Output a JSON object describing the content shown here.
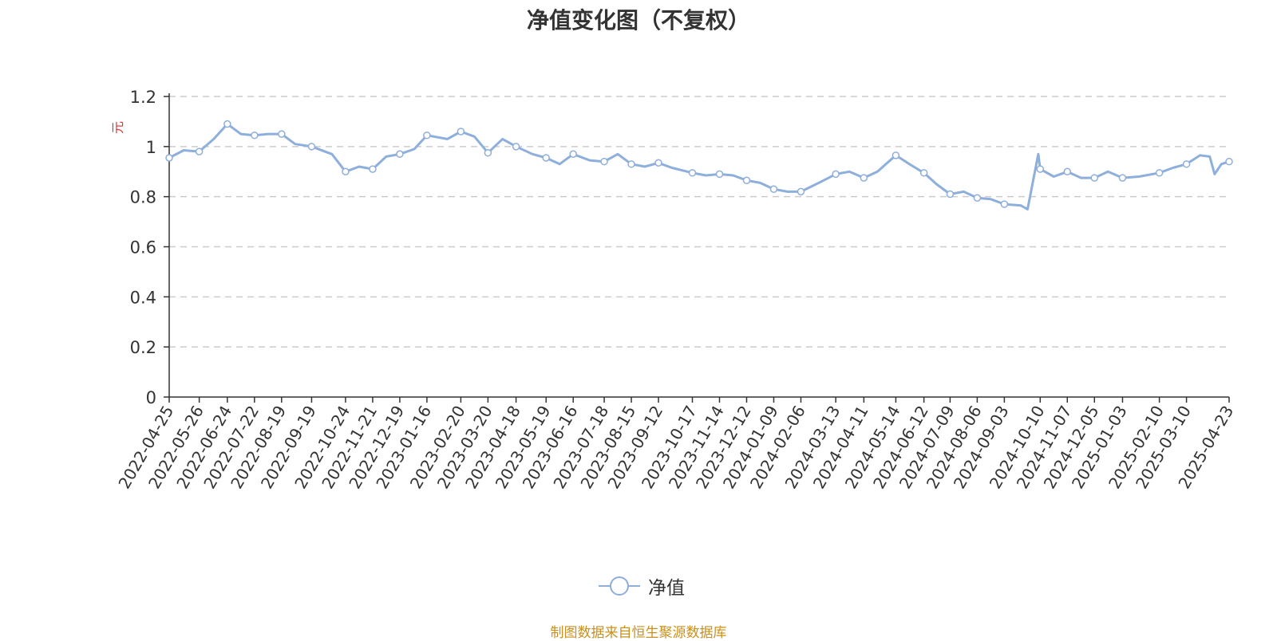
{
  "chart_data": {
    "type": "line",
    "title": "净值变化图（不复权）",
    "ylabel": "元",
    "ylim": [
      0,
      1.2
    ],
    "yticks": [
      "0",
      "0.2",
      "0.4",
      "0.6",
      "0.8",
      "1",
      "1.2"
    ],
    "grid": true,
    "legend_position": "bottom-center",
    "xtick_labels": [
      "2022-04-25",
      "2022-05-26",
      "2022-06-24",
      "2022-07-22",
      "2022-08-19",
      "2022-09-19",
      "2022-10-24",
      "2022-11-21",
      "2022-12-19",
      "2023-01-16",
      "2023-02-20",
      "2023-03-20",
      "2023-04-18",
      "2023-05-19",
      "2023-06-16",
      "2023-07-18",
      "2023-08-15",
      "2023-09-12",
      "2023-10-17",
      "2023-11-14",
      "2023-12-12",
      "2024-01-09",
      "2024-02-06",
      "2024-03-13",
      "2024-04-11",
      "2024-05-14",
      "2024-06-12",
      "2024-07-09",
      "2024-08-06",
      "2024-09-03",
      "2024-10-10",
      "2024-11-07",
      "2024-12-05",
      "2025-01-03",
      "2025-02-10",
      "2025-03-10",
      "2025-04-23"
    ],
    "series": [
      {
        "name": "净值",
        "color": "#8eaedb",
        "x": [
          "2022-04-25",
          "2022-05-10",
          "2022-05-26",
          "2022-06-10",
          "2022-06-24",
          "2022-07-08",
          "2022-07-22",
          "2022-08-05",
          "2022-08-19",
          "2022-09-02",
          "2022-09-19",
          "2022-10-10",
          "2022-10-24",
          "2022-11-07",
          "2022-11-21",
          "2022-12-05",
          "2022-12-19",
          "2023-01-03",
          "2023-01-16",
          "2023-02-06",
          "2023-02-20",
          "2023-03-06",
          "2023-03-20",
          "2023-04-04",
          "2023-04-18",
          "2023-05-05",
          "2023-05-19",
          "2023-06-02",
          "2023-06-16",
          "2023-07-03",
          "2023-07-18",
          "2023-08-01",
          "2023-08-15",
          "2023-08-29",
          "2023-09-12",
          "2023-09-26",
          "2023-10-17",
          "2023-10-31",
          "2023-11-14",
          "2023-11-28",
          "2023-12-12",
          "2023-12-26",
          "2024-01-09",
          "2024-01-23",
          "2024-02-06",
          "2024-02-27",
          "2024-03-13",
          "2024-03-27",
          "2024-04-11",
          "2024-04-25",
          "2024-05-14",
          "2024-05-28",
          "2024-06-12",
          "2024-06-25",
          "2024-07-09",
          "2024-07-23",
          "2024-08-06",
          "2024-08-20",
          "2024-09-03",
          "2024-09-20",
          "2024-09-27",
          "2024-10-08",
          "2024-10-10",
          "2024-10-24",
          "2024-11-07",
          "2024-11-21",
          "2024-12-05",
          "2024-12-19",
          "2025-01-03",
          "2025-01-20",
          "2025-02-10",
          "2025-02-24",
          "2025-03-10",
          "2025-03-24",
          "2025-04-03",
          "2025-04-08",
          "2025-04-15",
          "2025-04-23"
        ],
        "values": [
          0.955,
          0.985,
          0.98,
          1.03,
          1.09,
          1.05,
          1.045,
          1.05,
          1.05,
          1.01,
          1.0,
          0.97,
          0.9,
          0.92,
          0.91,
          0.96,
          0.97,
          0.99,
          1.045,
          1.03,
          1.06,
          1.04,
          0.975,
          1.03,
          1.0,
          0.97,
          0.955,
          0.93,
          0.97,
          0.945,
          0.94,
          0.97,
          0.93,
          0.92,
          0.935,
          0.915,
          0.895,
          0.885,
          0.89,
          0.885,
          0.865,
          0.855,
          0.83,
          0.82,
          0.82,
          0.86,
          0.89,
          0.9,
          0.875,
          0.9,
          0.965,
          0.93,
          0.895,
          0.85,
          0.81,
          0.82,
          0.795,
          0.79,
          0.77,
          0.765,
          0.75,
          0.97,
          0.91,
          0.88,
          0.9,
          0.875,
          0.875,
          0.9,
          0.875,
          0.88,
          0.895,
          0.915,
          0.93,
          0.965,
          0.96,
          0.89,
          0.93,
          0.94
        ]
      }
    ]
  },
  "legend": {
    "label": "净值"
  },
  "footer": {
    "source": "制图数据来自恒生聚源数据库"
  }
}
